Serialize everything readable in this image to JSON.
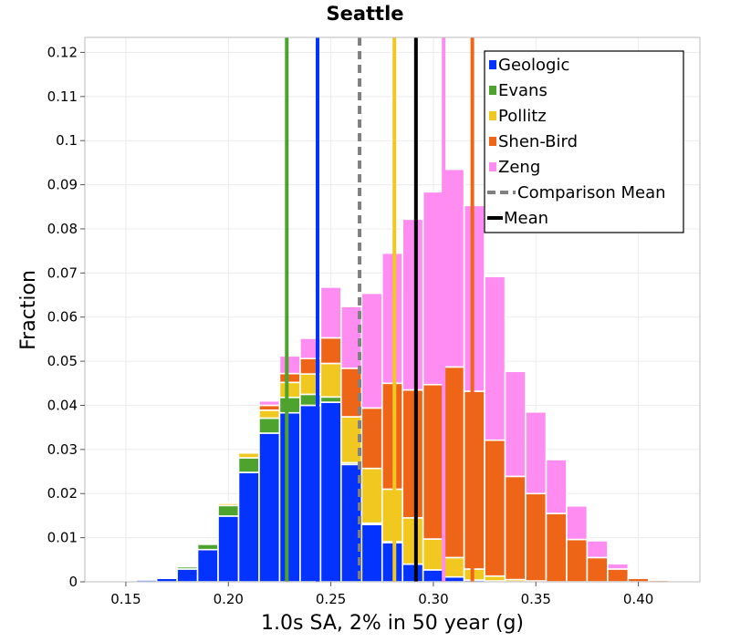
{
  "chart_data": {
    "type": "bar",
    "stacked": true,
    "title": "Seattle",
    "xlabel": "1.0s SA, 2% in 50 year (g)",
    "ylabel": "Fraction",
    "xlim": [
      0.13,
      0.43
    ],
    "ylim": [
      0,
      0.1234
    ],
    "bin_width": 0.01,
    "x": [
      0.15,
      0.16,
      0.17,
      0.18,
      0.19,
      0.2,
      0.21,
      0.22,
      0.23,
      0.24,
      0.25,
      0.26,
      0.27,
      0.28,
      0.29,
      0.3,
      0.31,
      0.32,
      0.33,
      0.34,
      0.35,
      0.36,
      0.37,
      0.38,
      0.39,
      0.4,
      0.41,
      0.42
    ],
    "x_ticks": [
      0.15,
      0.2,
      0.25,
      0.3,
      0.35,
      0.4
    ],
    "x_tick_labels": [
      "0.15",
      "0.20",
      "0.25",
      "0.30",
      "0.35",
      "0.40"
    ],
    "y_ticks": [
      0,
      0.01,
      0.02,
      0.03,
      0.04,
      0.05,
      0.06,
      0.07,
      0.08,
      0.09,
      0.1,
      0.11,
      0.12
    ],
    "y_tick_labels": [
      "0",
      "0.01",
      "0.02",
      "0.03",
      "0.04",
      "0.05",
      "0.06",
      "0.07",
      "0.08",
      "0.09",
      "0.1",
      "0.11",
      "0.12"
    ],
    "series": [
      {
        "name": "Geologic",
        "color": "#0433ff",
        "values": [
          0.0002,
          0.0004,
          0.0008,
          0.0029,
          0.0073,
          0.0149,
          0.0248,
          0.0337,
          0.0383,
          0.04,
          0.0407,
          0.0266,
          0.013,
          0.0089,
          0.004,
          0.0027,
          0.0011,
          0.0004,
          0.0002,
          0,
          0,
          0,
          0,
          0,
          0,
          0,
          0,
          0
        ]
      },
      {
        "name": "Evans",
        "color": "#4da32d",
        "values": [
          0,
          0,
          0.0002,
          0.0005,
          0.0012,
          0.0024,
          0.0033,
          0.0034,
          0.0035,
          0.0025,
          0.0012,
          0.0004,
          0.0003,
          0.0002,
          0,
          0,
          0,
          0,
          0,
          0,
          0,
          0,
          0,
          0,
          0,
          0,
          0,
          0
        ]
      },
      {
        "name": "Pollitz",
        "color": "#f0c820",
        "values": [
          0,
          0,
          0,
          0,
          0,
          0.0005,
          0.0011,
          0.0018,
          0.0034,
          0.0046,
          0.0076,
          0.0104,
          0.0124,
          0.0119,
          0.0105,
          0.007,
          0.0044,
          0.0025,
          0.0011,
          0.0005,
          0.0002,
          0,
          0,
          0,
          0,
          0,
          0,
          0
        ]
      },
      {
        "name": "Shen-Bird",
        "color": "#ef6518",
        "values": [
          0,
          0,
          0,
          0,
          0,
          0.0001,
          0.0002,
          0.0011,
          0.002,
          0.0035,
          0.0058,
          0.011,
          0.0137,
          0.024,
          0.029,
          0.035,
          0.0432,
          0.0403,
          0.0308,
          0.0234,
          0.0198,
          0.0155,
          0.0096,
          0.0055,
          0.0029,
          0.0008,
          0.0004,
          0.0001
        ]
      },
      {
        "name": "Zeng",
        "color": "#ff8cf0",
        "values": [
          0,
          0,
          0,
          0,
          0,
          0.0001,
          0.0002,
          0.001,
          0.004,
          0.0046,
          0.0115,
          0.014,
          0.026,
          0.0295,
          0.0387,
          0.0437,
          0.0448,
          0.0421,
          0.0371,
          0.0238,
          0.0185,
          0.0122,
          0.0076,
          0.0038,
          0.0012,
          0.0003,
          0.0002,
          0
        ]
      }
    ],
    "vlines": [
      {
        "name": "Geologic",
        "x": 0.2435,
        "color": "#0433ff",
        "style": "solid"
      },
      {
        "name": "Evans",
        "x": 0.2285,
        "color": "#4da32d",
        "style": "solid"
      },
      {
        "name": "Pollitz",
        "x": 0.281,
        "color": "#f0c820",
        "style": "solid"
      },
      {
        "name": "Shen-Bird",
        "x": 0.319,
        "color": "#ef6518",
        "style": "solid"
      },
      {
        "name": "Zeng",
        "x": 0.305,
        "color": "#ff8cf0",
        "style": "solid"
      },
      {
        "name": "Comparison Mean",
        "x": 0.264,
        "color": "#808080",
        "style": "dashed"
      },
      {
        "name": "Mean",
        "x": 0.2915,
        "color": "#000000",
        "style": "solid"
      }
    ],
    "legend": {
      "position": "top-right",
      "entries": [
        {
          "label": "Geologic",
          "kind": "patch",
          "color": "#0433ff"
        },
        {
          "label": "Evans",
          "kind": "patch",
          "color": "#4da32d"
        },
        {
          "label": "Pollitz",
          "kind": "patch",
          "color": "#f0c820"
        },
        {
          "label": "Shen-Bird",
          "kind": "patch",
          "color": "#ef6518"
        },
        {
          "label": "Zeng",
          "kind": "patch",
          "color": "#ff8cf0"
        },
        {
          "label": "Comparison Mean",
          "kind": "dashed-line",
          "color": "#808080"
        },
        {
          "label": "Mean",
          "kind": "line",
          "color": "#000000"
        }
      ]
    },
    "grid": true
  }
}
